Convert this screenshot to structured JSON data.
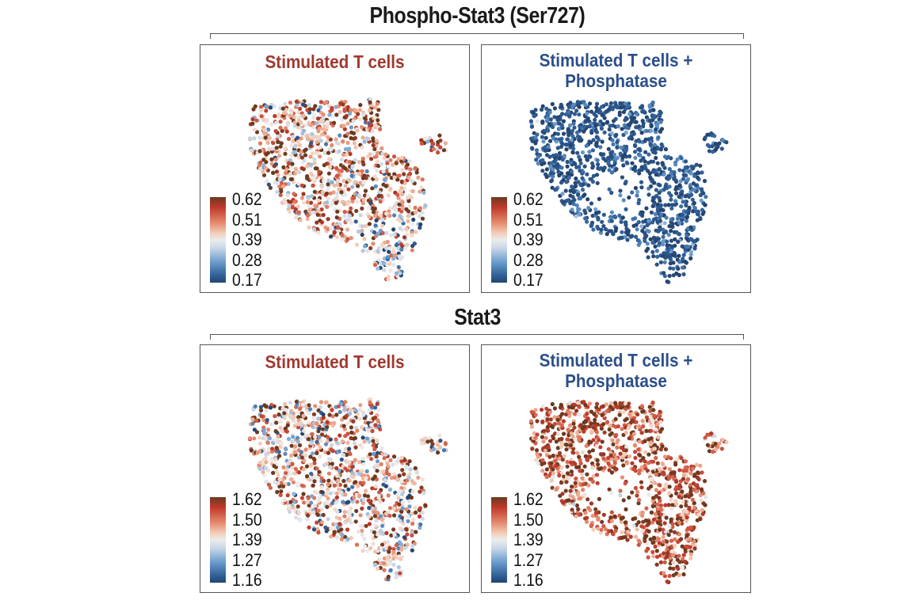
{
  "figure": {
    "sections": [
      {
        "title": "Phospho-Stat3 (Ser727)"
      },
      {
        "title": "Stat3"
      }
    ],
    "colors": {
      "red_title": "#a0392f",
      "blue_title": "#2c4f8a",
      "colormap": [
        "#24436e",
        "#2f5f97",
        "#6b9ccc",
        "#c7d6e8",
        "#ececec",
        "#f3cdb8",
        "#e58a6e",
        "#c0392b",
        "#6b3a1f"
      ]
    }
  },
  "chart_data": [
    {
      "type": "scatter",
      "title": "Stimulated T cells",
      "section": "Phospho-Stat3 (Ser727)",
      "legend_title": "",
      "colorbar_ticks": [
        "0.62",
        "0.51",
        "0.39",
        "0.28",
        "0.17"
      ],
      "color_range": [
        0.17,
        0.62
      ],
      "value_distribution": {
        "mean": 0.49,
        "spread": 0.13,
        "low_region": "bottom-right lobe"
      },
      "layout": "umap",
      "legend_position": "bottom-left"
    },
    {
      "type": "scatter",
      "title": "Stimulated T cells + Phosphatase",
      "title_lines": [
        "Stimulated T cells +",
        "Phosphatase"
      ],
      "section": "Phospho-Stat3 (Ser727)",
      "colorbar_ticks": [
        "0.62",
        "0.51",
        "0.39",
        "0.28",
        "0.17"
      ],
      "color_range": [
        0.17,
        0.62
      ],
      "value_distribution": {
        "mean": 0.21,
        "spread": 0.04
      },
      "layout": "umap",
      "legend_position": "bottom-left"
    },
    {
      "type": "scatter",
      "title": "Stimulated T cells",
      "section": "Stat3",
      "colorbar_ticks": [
        "1.62",
        "1.50",
        "1.39",
        "1.27",
        "1.16"
      ],
      "color_range": [
        1.16,
        1.62
      ],
      "value_distribution": {
        "mean": 1.45,
        "spread": 0.14
      },
      "layout": "umap",
      "legend_position": "bottom-left"
    },
    {
      "type": "scatter",
      "title": "Stimulated T cells + Phosphatase",
      "title_lines": [
        "Stimulated T cells +",
        "Phosphatase"
      ],
      "section": "Stat3",
      "colorbar_ticks": [
        "1.62",
        "1.50",
        "1.39",
        "1.27",
        "1.16"
      ],
      "color_range": [
        1.16,
        1.62
      ],
      "value_distribution": {
        "mean": 1.55,
        "spread": 0.08
      },
      "layout": "umap",
      "legend_position": "bottom-left"
    }
  ]
}
